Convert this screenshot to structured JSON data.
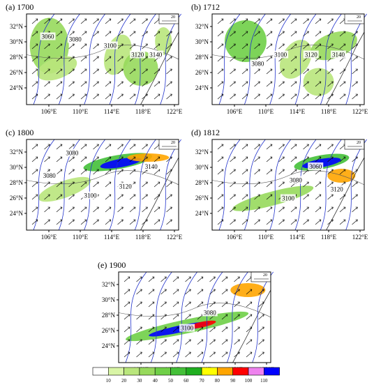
{
  "panels": [
    {
      "title": "(a) 1700",
      "contour_labels": [
        "3060",
        "3080",
        "3100",
        "3120",
        "3140"
      ],
      "ref_vector": "20"
    },
    {
      "title": "(b) 1712",
      "contour_labels": [
        "3080",
        "3100",
        "3120",
        "3140"
      ],
      "ref_vector": "20"
    },
    {
      "title": "(c) 1800",
      "contour_labels": [
        "3080",
        "3080",
        "3100",
        "3120",
        "3140"
      ],
      "ref_vector": "20"
    },
    {
      "title": "(d) 1812",
      "contour_labels": [
        "3080",
        "3060",
        "3100",
        "3120"
      ],
      "ref_vector": "20"
    },
    {
      "title": "(e) 1900",
      "contour_labels": [
        "3080",
        "3100"
      ],
      "ref_vector": "20"
    }
  ],
  "lat_labels": [
    "32°N",
    "30°N",
    "28°N",
    "26°N",
    "24°N"
  ],
  "lon_labels": [
    "106°E",
    "110°E",
    "114°E",
    "118°E",
    "122°E"
  ],
  "colorbar": {
    "labels": [
      "10",
      "20",
      "30",
      "40",
      "50",
      "60",
      "70",
      "80",
      "90",
      "100",
      "110"
    ],
    "colors": [
      "#ffffff",
      "#d9f5a6",
      "#b9e67c",
      "#97d95c",
      "#6fcf47",
      "#44c038",
      "#1fae1f",
      "#ffff00",
      "#ffa500",
      "#ff0000",
      "#ee82ee",
      "#0000ff"
    ]
  }
}
